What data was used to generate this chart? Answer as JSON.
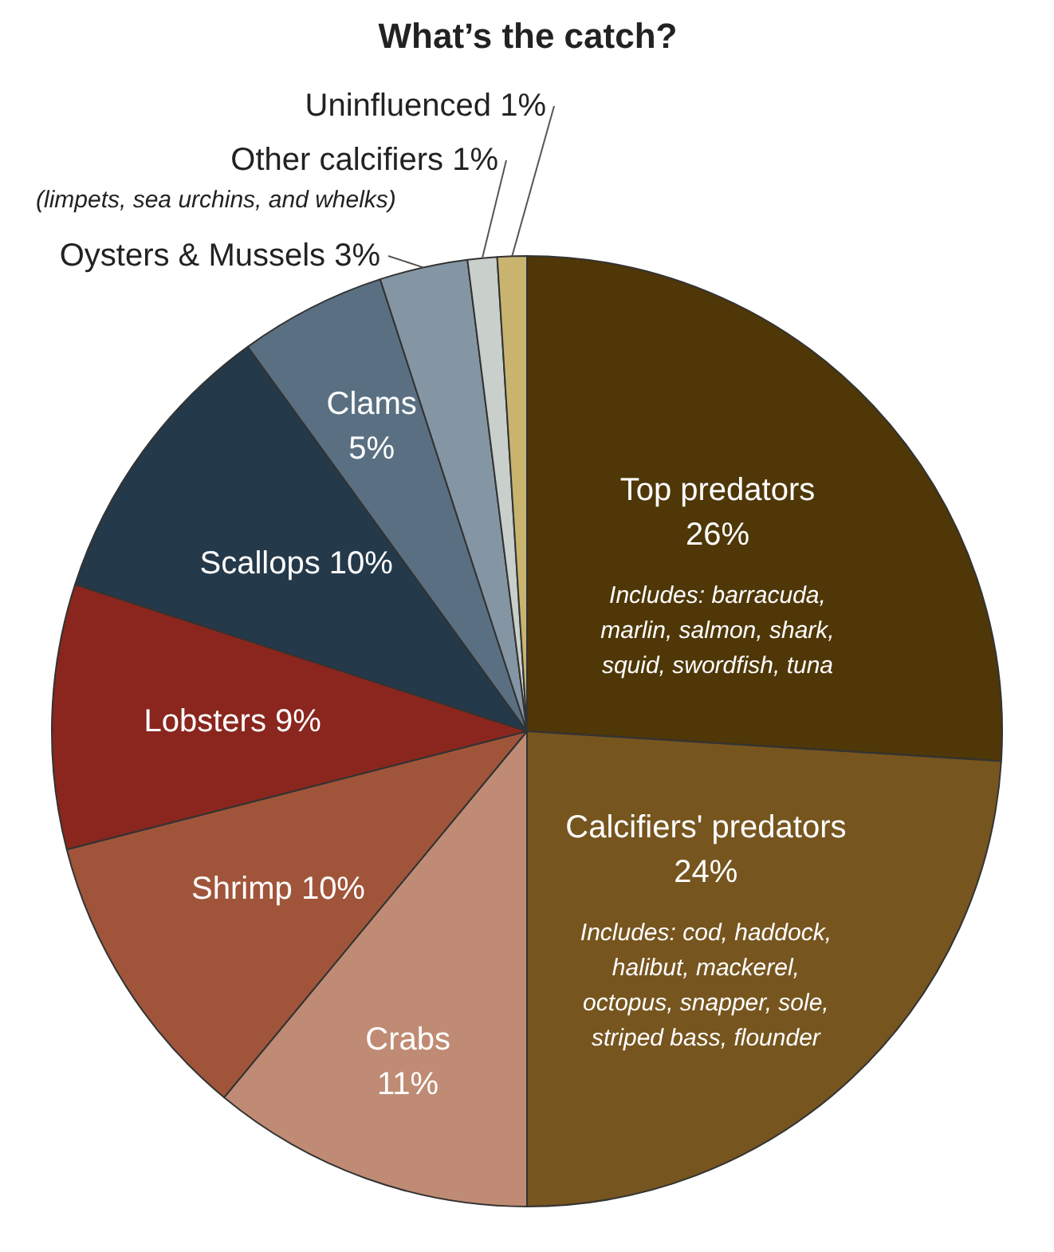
{
  "chart_data": {
    "type": "pie",
    "title": "What’s the catch?",
    "categories": [
      "Top predators",
      "Calcifiers' predators",
      "Crabs",
      "Shrimp",
      "Lobsters",
      "Scallops",
      "Clams",
      "Oysters & Mussels",
      "Other calcifiers",
      "Uninfluenced"
    ],
    "values": [
      26,
      24,
      11,
      10,
      9,
      10,
      5,
      3,
      1,
      1
    ],
    "value_labels": [
      "26%",
      "24%",
      "11%",
      "10%",
      "9%",
      "10%",
      "5%",
      "3%",
      "1%",
      "1%"
    ],
    "colors": [
      "#4f3708",
      "#76551f",
      "#c08b74",
      "#a0553a",
      "#8a261e",
      "#24394a",
      "#5a7082",
      "#8496a4",
      "#c9cfcb",
      "#c8b46e"
    ],
    "annotations": [
      "Includes: barracuda, marlin, salmon, shark, squid, swordfish, tuna",
      "Includes: cod, haddock, halibut, mackerel, octopus, snapper, sole, striped bass, flounder",
      "(limpets, sea urchins, and whelks)"
    ]
  }
}
